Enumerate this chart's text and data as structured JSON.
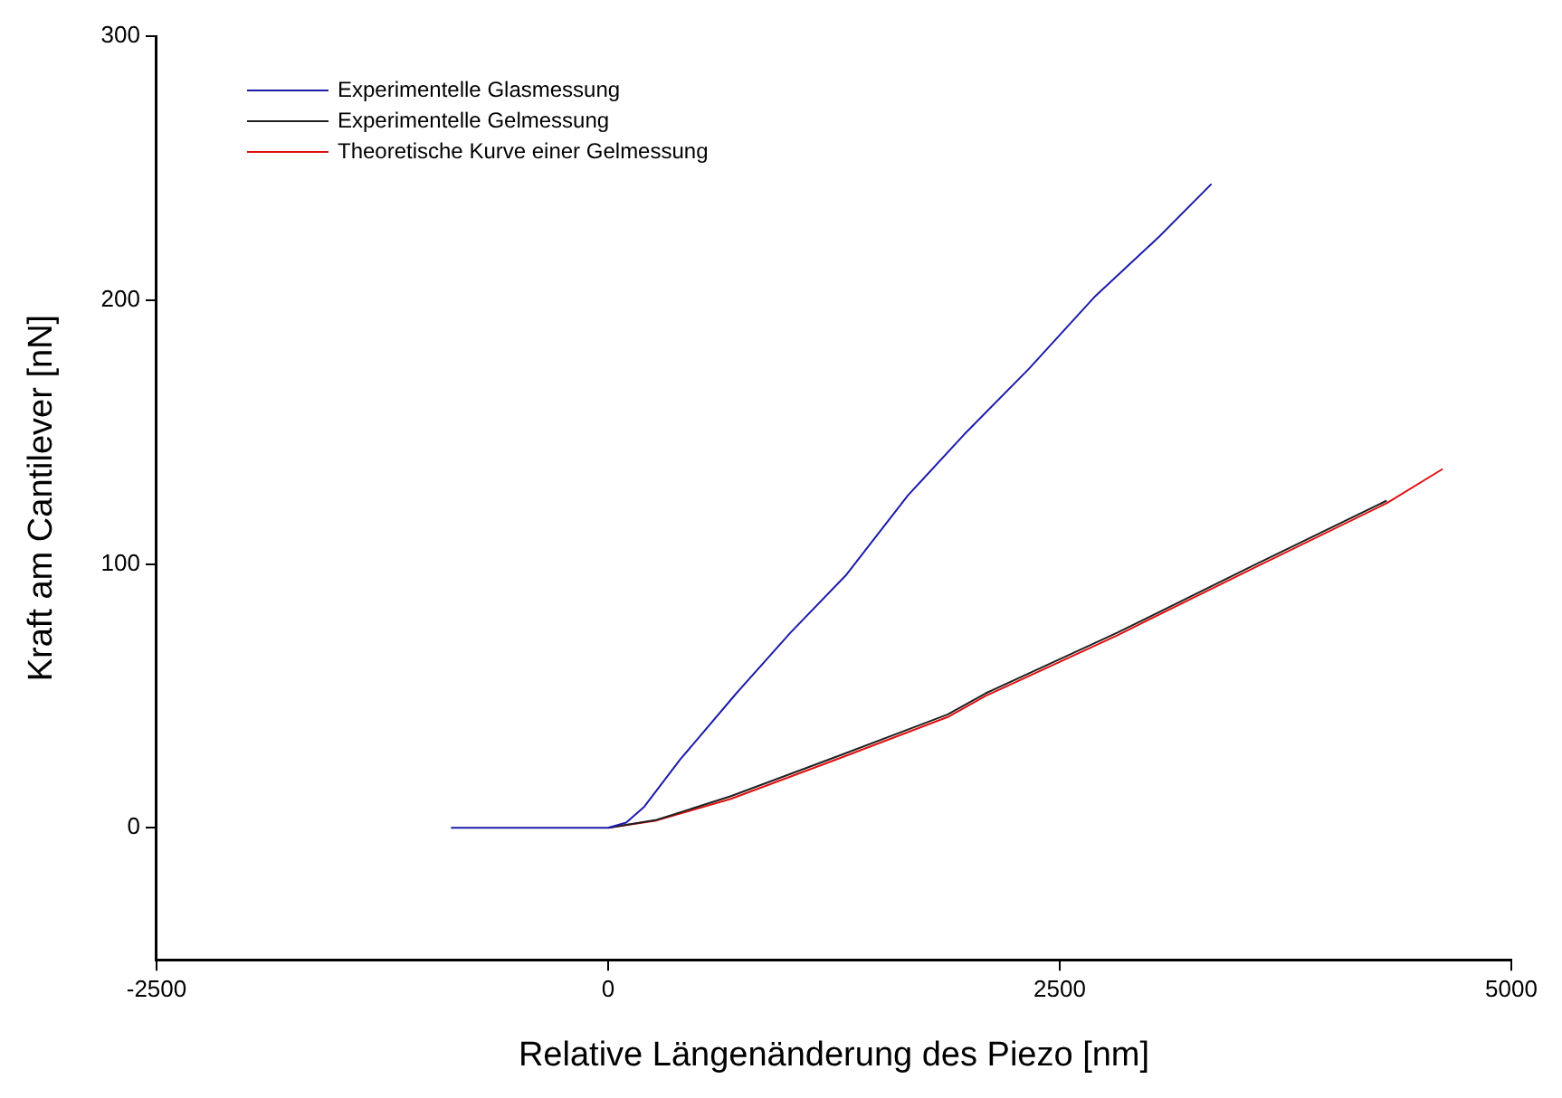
{
  "chart_data": {
    "type": "line",
    "xlabel": "Relative Längenänderung des Piezo [nm]",
    "ylabel": "Kraft am Cantilever [nN]",
    "xlim": [
      -2500,
      5000
    ],
    "xticks": [
      -2500,
      0,
      2500,
      5000
    ],
    "ylim": [
      -50,
      300
    ],
    "yticks": [
      0,
      100,
      200,
      300
    ],
    "grid": false,
    "legend": "top left",
    "marker": "none",
    "line_style": "solid",
    "series": [
      {
        "name": "Experimentelle Glasmessung",
        "color": "#1c1ca8",
        "x": [
          -870,
          -500,
          0,
          100,
          200,
          400,
          710,
          1010,
          1320,
          1660,
          1970,
          2330,
          2690,
          3050,
          3340
        ],
        "values": [
          0,
          0,
          0,
          2,
          8,
          26,
          51,
          74,
          96,
          126,
          149,
          174,
          201,
          224,
          244
        ]
      },
      {
        "name": "Experimentelle Gelmessung",
        "color": "#202020",
        "x": [
          0,
          268,
          680,
          1266,
          1880,
          2090,
          2630,
          2820,
          3560,
          4310
        ],
        "values": [
          0,
          3,
          12,
          27,
          43,
          51,
          68,
          74,
          99,
          124
        ]
      },
      {
        "name": "Theoretische Kurve einer Gelmessung",
        "color": "#e01010",
        "x": [
          0,
          268,
          680,
          1266,
          1880,
          2090,
          2630,
          2820,
          3560,
          4310,
          4620
        ],
        "values": [
          0,
          2.8,
          11,
          26,
          42,
          50,
          67,
          73,
          98,
          123,
          136
        ]
      }
    ]
  }
}
